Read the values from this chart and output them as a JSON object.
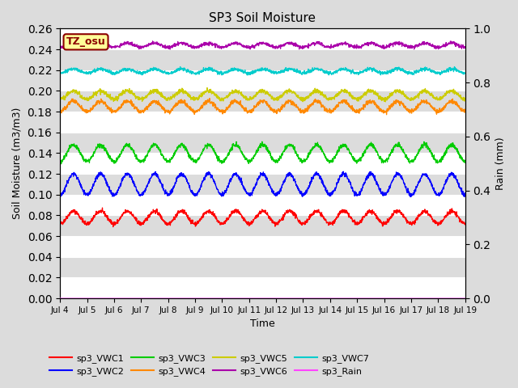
{
  "title": "SP3 Soil Moisture",
  "ylabel_left": "Soil Moisture (m3/m3)",
  "ylabel_right": "Rain (mm)",
  "xlabel": "Time",
  "ylim_left": [
    0.0,
    0.26
  ],
  "ylim_right": [
    0.0,
    1.0
  ],
  "annotation_text": "TZ_osu",
  "annotation_bg": "#FFFF99",
  "annotation_border": "#8B0000",
  "annotation_text_color": "#8B0000",
  "series_order": [
    "sp3_VWC1",
    "sp3_VWC2",
    "sp3_VWC3",
    "sp3_VWC4",
    "sp3_VWC5",
    "sp3_VWC6",
    "sp3_VWC7"
  ],
  "series": {
    "sp3_VWC1": {
      "color": "#FF0000",
      "mean": 0.078,
      "amp": 0.006,
      "noise": 0.001
    },
    "sp3_VWC2": {
      "color": "#0000FF",
      "mean": 0.11,
      "amp": 0.01,
      "noise": 0.001
    },
    "sp3_VWC3": {
      "color": "#00CC00",
      "mean": 0.14,
      "amp": 0.008,
      "noise": 0.001
    },
    "sp3_VWC4": {
      "color": "#FF8800",
      "mean": 0.185,
      "amp": 0.005,
      "noise": 0.001
    },
    "sp3_VWC5": {
      "color": "#CCCC00",
      "mean": 0.196,
      "amp": 0.004,
      "noise": 0.001
    },
    "sp3_VWC6": {
      "color": "#AA00AA",
      "mean": 0.244,
      "amp": 0.002,
      "noise": 0.0008
    },
    "sp3_VWC7": {
      "color": "#00CCCC",
      "mean": 0.219,
      "amp": 0.002,
      "noise": 0.0008
    },
    "sp3_Rain": {
      "color": "#FF44FF",
      "mean": 0.0,
      "amp": 0.0,
      "noise": 0.0
    }
  },
  "tick_labels": [
    "Jul 4",
    "Jul 5",
    "Jul 6",
    "Jul 7",
    "Jul 8",
    "Jul 9",
    "Jul 10",
    "Jul 11",
    "Jul 12",
    "Jul 13",
    "Jul 14",
    "Jul 15",
    "Jul 16",
    "Jul 17",
    "Jul 18",
    "Jul 19"
  ],
  "tick_positions": [
    0,
    1,
    2,
    3,
    4,
    5,
    6,
    7,
    8,
    9,
    10,
    11,
    12,
    13,
    14,
    15
  ],
  "legend_order": [
    "sp3_VWC1",
    "sp3_VWC2",
    "sp3_VWC3",
    "sp3_VWC4",
    "sp3_VWC5",
    "sp3_VWC6",
    "sp3_VWC7",
    "sp3_Rain"
  ],
  "bg_light": "#DCDCDC",
  "bg_dark": "#C8C8C8",
  "grid_color": "#FFFFFF"
}
